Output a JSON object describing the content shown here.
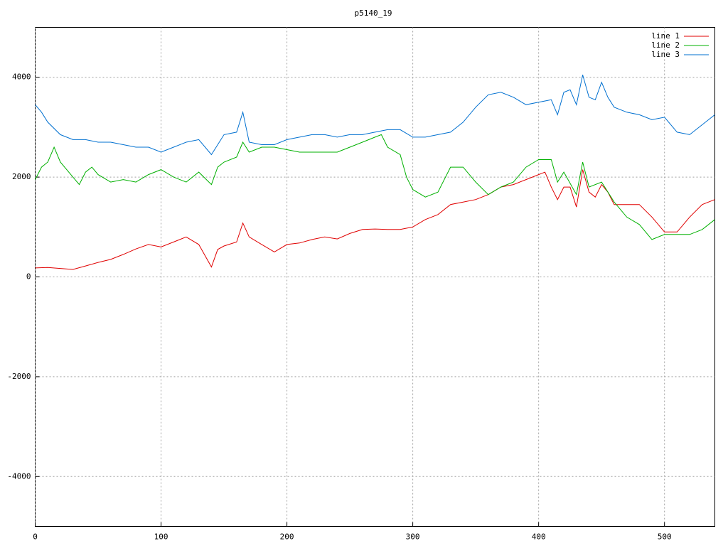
{
  "chart_data": {
    "type": "line",
    "title": "p5140_19",
    "xlim": [
      0,
      540
    ],
    "ylim": [
      -5000,
      5000
    ],
    "xticks": [
      0,
      100,
      200,
      300,
      400,
      500
    ],
    "yticks": [
      -4000,
      -2000,
      0,
      2000,
      4000
    ],
    "grid": true,
    "legend": "top-right",
    "series": [
      {
        "name": "line 1",
        "color": "#e00000",
        "x": [
          0,
          10,
          20,
          30,
          40,
          50,
          60,
          70,
          80,
          90,
          100,
          110,
          120,
          130,
          140,
          145,
          150,
          160,
          165,
          170,
          180,
          190,
          200,
          210,
          220,
          230,
          240,
          250,
          260,
          270,
          280,
          290,
          300,
          310,
          320,
          330,
          340,
          350,
          360,
          370,
          380,
          390,
          400,
          405,
          410,
          415,
          420,
          425,
          430,
          435,
          440,
          445,
          450,
          455,
          460,
          470,
          480,
          490,
          500,
          510,
          520,
          530,
          540
        ],
        "values": [
          180,
          190,
          170,
          150,
          220,
          290,
          350,
          450,
          560,
          650,
          600,
          700,
          800,
          650,
          200,
          550,
          620,
          700,
          1080,
          800,
          650,
          500,
          650,
          680,
          750,
          800,
          760,
          870,
          950,
          960,
          950,
          950,
          1000,
          1150,
          1250,
          1450,
          1500,
          1550,
          1650,
          1800,
          1850,
          1950,
          2050,
          2100,
          1800,
          1550,
          1800,
          1800,
          1400,
          2150,
          1700,
          1600,
          1850,
          1700,
          1450,
          1450,
          1450,
          1200,
          900,
          900,
          1200,
          1450,
          1550
        ]
      },
      {
        "name": "line 2",
        "color": "#00b000",
        "x": [
          0,
          5,
          10,
          15,
          20,
          30,
          35,
          40,
          45,
          50,
          60,
          70,
          80,
          90,
          100,
          110,
          120,
          130,
          140,
          145,
          150,
          160,
          165,
          170,
          180,
          190,
          200,
          210,
          220,
          230,
          240,
          250,
          260,
          270,
          275,
          280,
          290,
          295,
          300,
          310,
          320,
          330,
          340,
          350,
          360,
          370,
          380,
          390,
          400,
          410,
          415,
          420,
          430,
          435,
          440,
          450,
          460,
          470,
          480,
          490,
          500,
          510,
          520,
          530,
          540
        ],
        "values": [
          1950,
          2200,
          2300,
          2600,
          2300,
          2000,
          1850,
          2100,
          2200,
          2050,
          1900,
          1950,
          1900,
          2050,
          2150,
          2000,
          1900,
          2100,
          1850,
          2200,
          2300,
          2400,
          2700,
          2500,
          2600,
          2600,
          2550,
          2500,
          2500,
          2500,
          2500,
          2600,
          2700,
          2800,
          2850,
          2600,
          2450,
          2000,
          1750,
          1600,
          1700,
          2200,
          2200,
          1900,
          1650,
          1800,
          1900,
          2200,
          2350,
          2350,
          1900,
          2100,
          1650,
          2300,
          1800,
          1900,
          1500,
          1200,
          1050,
          750,
          850,
          850,
          850,
          950,
          1150
        ]
      },
      {
        "name": "line 3",
        "color": "#0070d0",
        "x": [
          0,
          5,
          10,
          20,
          30,
          40,
          50,
          60,
          70,
          80,
          90,
          100,
          110,
          120,
          130,
          140,
          150,
          160,
          165,
          170,
          180,
          190,
          200,
          210,
          220,
          230,
          240,
          250,
          260,
          270,
          280,
          290,
          300,
          310,
          320,
          330,
          340,
          350,
          360,
          370,
          380,
          390,
          400,
          410,
          415,
          420,
          425,
          430,
          435,
          440,
          445,
          450,
          455,
          460,
          470,
          480,
          490,
          500,
          510,
          520,
          530,
          540
        ],
        "values": [
          3450,
          3300,
          3100,
          2850,
          2750,
          2750,
          2700,
          2700,
          2650,
          2600,
          2600,
          2500,
          2600,
          2700,
          2750,
          2450,
          2850,
          2900,
          3300,
          2700,
          2650,
          2650,
          2750,
          2800,
          2850,
          2850,
          2800,
          2850,
          2850,
          2900,
          2950,
          2950,
          2800,
          2800,
          2850,
          2900,
          3100,
          3400,
          3650,
          3700,
          3600,
          3450,
          3500,
          3550,
          3250,
          3700,
          3750,
          3450,
          4050,
          3600,
          3550,
          3900,
          3600,
          3400,
          3300,
          3250,
          3150,
          3200,
          2900,
          2850,
          3050,
          3250
        ]
      }
    ]
  }
}
